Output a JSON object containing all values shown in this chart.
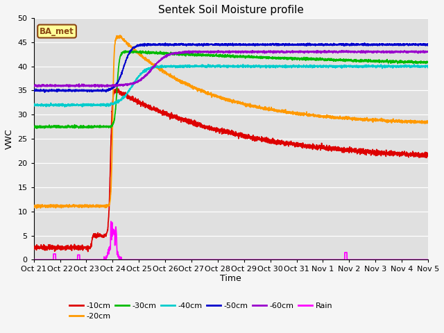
{
  "title": "Sentek Soil Moisture profile",
  "xlabel": "Time",
  "ylabel": "VWC",
  "ylim": [
    0,
    50
  ],
  "background_color": "#e0e0e0",
  "grid_color": "#ffffff",
  "annotation_text": "BA_met",
  "annotation_bg": "#ffff99",
  "annotation_border": "#8B4513",
  "colors": {
    "10cm": "#dd0000",
    "20cm": "#ff9900",
    "30cm": "#00bb00",
    "40cm": "#00cccc",
    "50cm": "#0000cc",
    "60cm": "#9900cc",
    "rain": "#ff00ff"
  },
  "tick_labels": [
    "Oct 21",
    "Oct 22",
    "Oct 23",
    "Oct 24",
    "Oct 25",
    "Oct 26",
    "Oct 27",
    "Oct 28",
    "Oct 29",
    "Oct 30",
    "Oct 31",
    "Nov 1",
    "Nov 2",
    "Nov 3",
    "Nov 4",
    "Nov 5"
  ],
  "figsize": [
    6.4,
    4.8
  ],
  "dpi": 100
}
